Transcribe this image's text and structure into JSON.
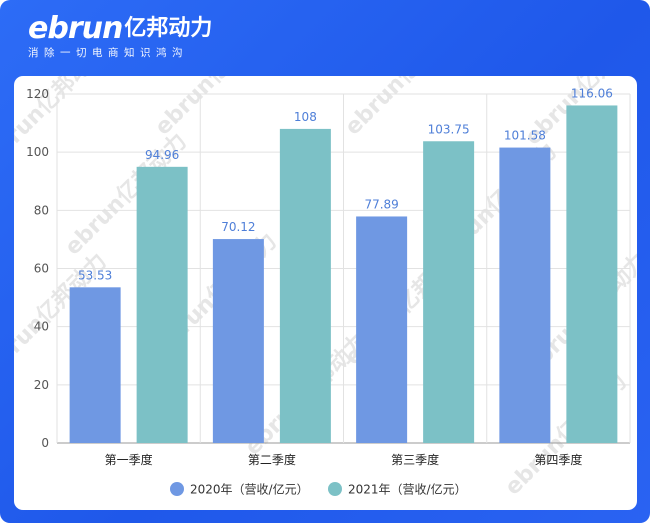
{
  "header": {
    "logo_word": "ebrun",
    "logo_cn": "亿邦动力",
    "tagline": "消除一切电商知识鸿沟",
    "watermark": "ebrun亿邦动力"
  },
  "colors": {
    "series_2020": "#6f98e3",
    "series_2021": "#7cc1c6",
    "frame": "#2563f0"
  },
  "chart_data": {
    "type": "bar",
    "categories": [
      "第一季度",
      "第二季度",
      "第三季度",
      "第四季度"
    ],
    "series": [
      {
        "name": "2020年（营收/亿元）",
        "values": [
          53.53,
          70.12,
          77.89,
          101.58
        ]
      },
      {
        "name": "2021年（营收/亿元）",
        "values": [
          94.96,
          108,
          103.75,
          116.06
        ]
      }
    ],
    "value_labels": [
      [
        "53.53",
        "70.12",
        "77.89",
        "101.58"
      ],
      [
        "94.96",
        "108",
        "103.75",
        "116.06"
      ]
    ],
    "yticks": [
      "0",
      "20",
      "40",
      "60",
      "80",
      "100",
      "120"
    ],
    "ylim": [
      0,
      120
    ],
    "grid": true,
    "legend_position": "bottom"
  }
}
